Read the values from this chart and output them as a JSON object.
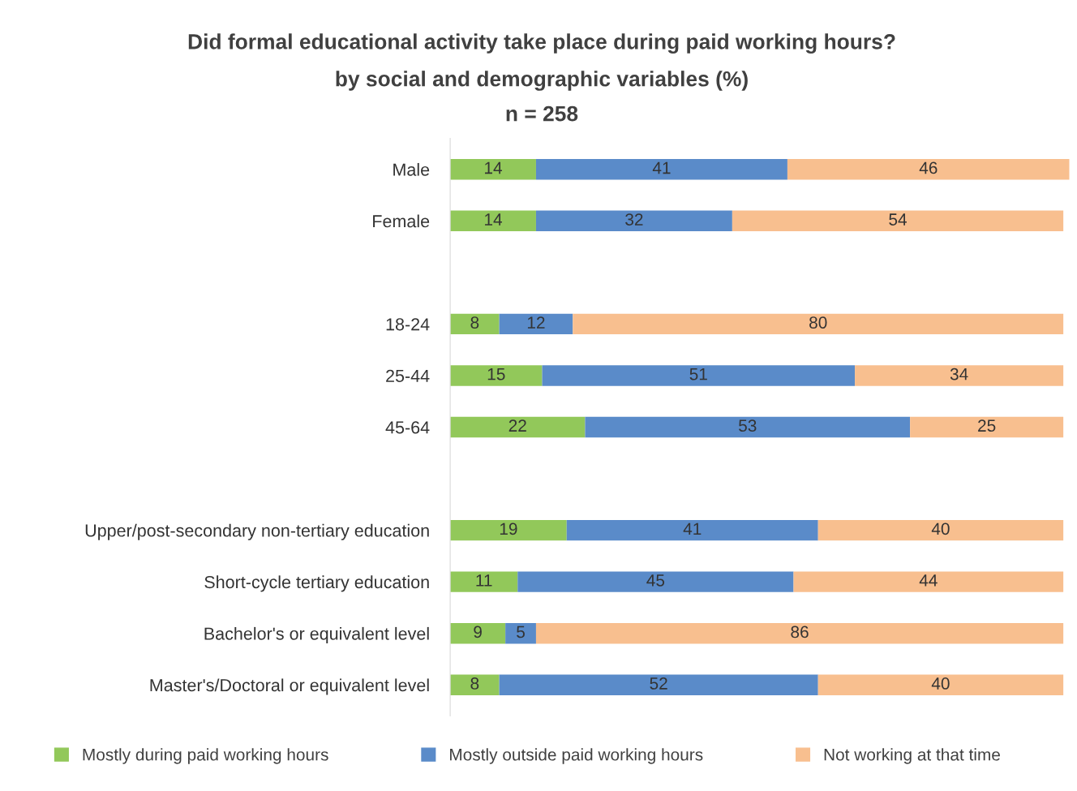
{
  "chart_data": {
    "type": "bar",
    "orientation": "horizontal",
    "stacked": true,
    "title": "Did formal educational activity take place during paid working hours?",
    "subtitle": "by social and demographic variables (%)\nn = 258",
    "categories": [
      "Male",
      "Female",
      null,
      "18-24",
      "25-44",
      "45-64",
      null,
      "Upper/post-secondary non-tertiary education",
      "Short-cycle tertiary education",
      "Bachelor's or equivalent level",
      "Master's/Doctoral or equivalent level"
    ],
    "series": [
      {
        "name": "Mostly during paid working hours",
        "color": "#92c85a",
        "values": [
          14,
          14,
          null,
          8,
          15,
          22,
          null,
          19,
          11,
          9,
          8
        ]
      },
      {
        "name": "Mostly outside paid working hours",
        "color": "#5a8bc9",
        "values": [
          41,
          32,
          null,
          12,
          51,
          53,
          null,
          41,
          45,
          5,
          52
        ]
      },
      {
        "name": "Not working at that time",
        "color": "#f8bf8f",
        "values": [
          46,
          54,
          null,
          80,
          34,
          25,
          null,
          40,
          44,
          86,
          40
        ]
      }
    ],
    "xlim": [
      0,
      101
    ],
    "data_labels": true,
    "legend": "bottom",
    "grid": false
  }
}
